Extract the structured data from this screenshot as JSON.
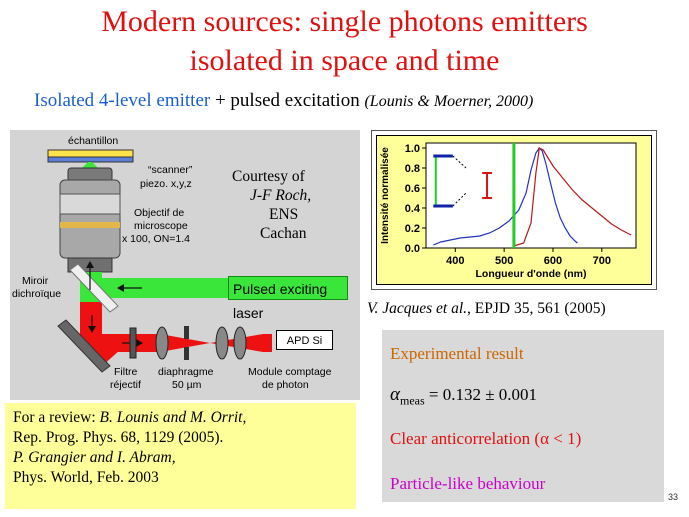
{
  "slide": {
    "title_line1": "Modern sources:  single photons emitters",
    "title_line2": "isolated in space and time",
    "subtitle": {
      "blue_part": "Isolated 4-level emitter",
      "plus": " + pulsed excitation ",
      "ref": "(Lounis & Moerner, 2000)"
    },
    "page_number": "33"
  },
  "diagram": {
    "sample_label": "échantillon",
    "scanner_label": "“scanner”",
    "piezo_label": "piezo. x,y,z",
    "objective_line1": "Objectif de",
    "objective_line2": "microscope",
    "objective_line3": "x 100, ON=1.4",
    "courtesy_line1": "Courtesy of",
    "courtesy_line2": "J-F Roch,",
    "courtesy_line3": "ENS",
    "courtesy_line4": "Cachan",
    "mirror_line1": "Miroir",
    "mirror_line2": "dichroïque",
    "laser_label": "Pulsed exciting laser",
    "apd_label": "APD Si",
    "filter_line1": "Filtre",
    "filter_line2": "réjectif",
    "diaphragm_line1": "diaphragme",
    "diaphragm_line2": "50 µm",
    "module_line1": "Module comptage",
    "module_line2": "de photon",
    "colors": {
      "laser": "#39e639",
      "beam": "#ee1111",
      "background": "#d4d4d4"
    }
  },
  "review": {
    "line1_prefix": "For a review: ",
    "line1_authors": "B. Lounis and M. Orrit",
    "line1_suffix": ",",
    "line2": "Rep. Prog. Phys. 68, 1129 (2005).",
    "line3": "P. Grangier and I. Abram,",
    "line4": "Phys. World, Feb. 2003"
  },
  "citation": {
    "authors": "V. Jacques et al.",
    "rest": ", EPJD 35, 561 (2005)"
  },
  "result": {
    "heading": "Experimental result",
    "meas_symbol": "α",
    "meas_sub": "meas",
    "meas_value": " = 0.132 ± 0.001",
    "clear": "Clear anticorrelation (α < 1)",
    "particle": "Particle-like behaviour"
  },
  "chart_data": {
    "type": "line",
    "xlabel": "Longueur d'onde (nm)",
    "ylabel": "Intensité normalisée",
    "xlim": [
      340,
      770
    ],
    "ylim": [
      0.0,
      1.05
    ],
    "xticks": [
      400,
      500,
      600,
      700
    ],
    "yticks": [
      0.0,
      0.2,
      0.4,
      0.6,
      0.8,
      1.0
    ],
    "series": [
      {
        "color": "#2233bb",
        "x": [
          355,
          370,
          390,
          410,
          430,
          450,
          470,
          490,
          510,
          530,
          545,
          555,
          565,
          572,
          578,
          585,
          595,
          605,
          615,
          625,
          635,
          645,
          650
        ],
        "y": [
          0.03,
          0.06,
          0.08,
          0.1,
          0.11,
          0.12,
          0.15,
          0.2,
          0.27,
          0.38,
          0.55,
          0.78,
          0.95,
          1.0,
          0.97,
          0.85,
          0.65,
          0.45,
          0.3,
          0.2,
          0.12,
          0.07,
          0.05
        ]
      },
      {
        "color": "#b81a1a",
        "x": [
          520,
          540,
          555,
          565,
          572,
          580,
          590,
          600,
          620,
          640,
          660,
          680,
          700,
          720,
          740,
          760
        ],
        "y": [
          0.02,
          0.05,
          0.25,
          0.75,
          1.0,
          0.98,
          0.9,
          0.82,
          0.7,
          0.58,
          0.48,
          0.4,
          0.32,
          0.24,
          0.18,
          0.13
        ]
      }
    ],
    "annotations": {
      "green_vline_x": 520,
      "level_upper_y": 0.92,
      "level_lower_y": 0.42
    }
  }
}
